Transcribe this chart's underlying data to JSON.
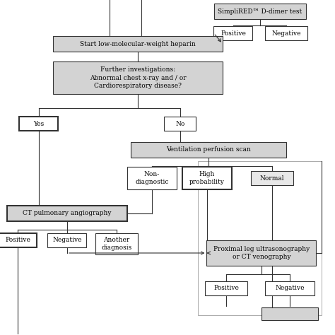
{
  "bg_color": "#ffffff",
  "box_gray": "#d3d3d3",
  "box_white": "#ffffff",
  "box_border": "#333333",
  "line_color": "#333333",
  "boxes": {
    "simplired": {
      "label": "SimpliRED™ D-dimer test",
      "fill": "#d3d3d3",
      "lw": 0.8
    },
    "positive_d": {
      "label": "Positive",
      "fill": "#ffffff",
      "lw": 0.8
    },
    "negative_d": {
      "label": "Negative",
      "fill": "#ffffff",
      "lw": 0.8
    },
    "heparin": {
      "label": "Start low-molecular-weight heparin",
      "fill": "#d3d3d3",
      "lw": 0.8
    },
    "further": {
      "label": "Further investigations:\nAbnormal chest x-ray and / or\nCardiorespiratory disease?",
      "fill": "#d3d3d3",
      "lw": 0.8
    },
    "yes": {
      "label": "Yes",
      "fill": "#ffffff",
      "lw": 1.5
    },
    "no": {
      "label": "No",
      "fill": "#ffffff",
      "lw": 0.8
    },
    "ventilation": {
      "label": "Ventilation perfusion scan",
      "fill": "#d3d3d3",
      "lw": 0.8
    },
    "nondiag": {
      "label": "Non-\ndiagnostic",
      "fill": "#ffffff",
      "lw": 0.8
    },
    "highprob": {
      "label": "High\nprobability",
      "fill": "#ffffff",
      "lw": 1.5
    },
    "normal": {
      "label": "Normal",
      "fill": "#e8e8e8",
      "lw": 0.8
    },
    "ct_pulm": {
      "label": "CT pulmonary angiography",
      "fill": "#d3d3d3",
      "lw": 1.5
    },
    "pos_ct": {
      "label": "Positive",
      "fill": "#ffffff",
      "lw": 1.5
    },
    "neg_ct": {
      "label": "Negative",
      "fill": "#ffffff",
      "lw": 0.8
    },
    "another": {
      "label": "Another\ndiagnosis",
      "fill": "#ffffff",
      "lw": 0.8
    },
    "proximal": {
      "label": "Proximal leg ultrasonography\nor CT venography",
      "fill": "#d3d3d3",
      "lw": 0.8
    },
    "pos_prox": {
      "label": "Positive",
      "fill": "#ffffff",
      "lw": 0.8
    },
    "neg_prox": {
      "label": "Negative",
      "fill": "#ffffff",
      "lw": 0.8
    }
  }
}
